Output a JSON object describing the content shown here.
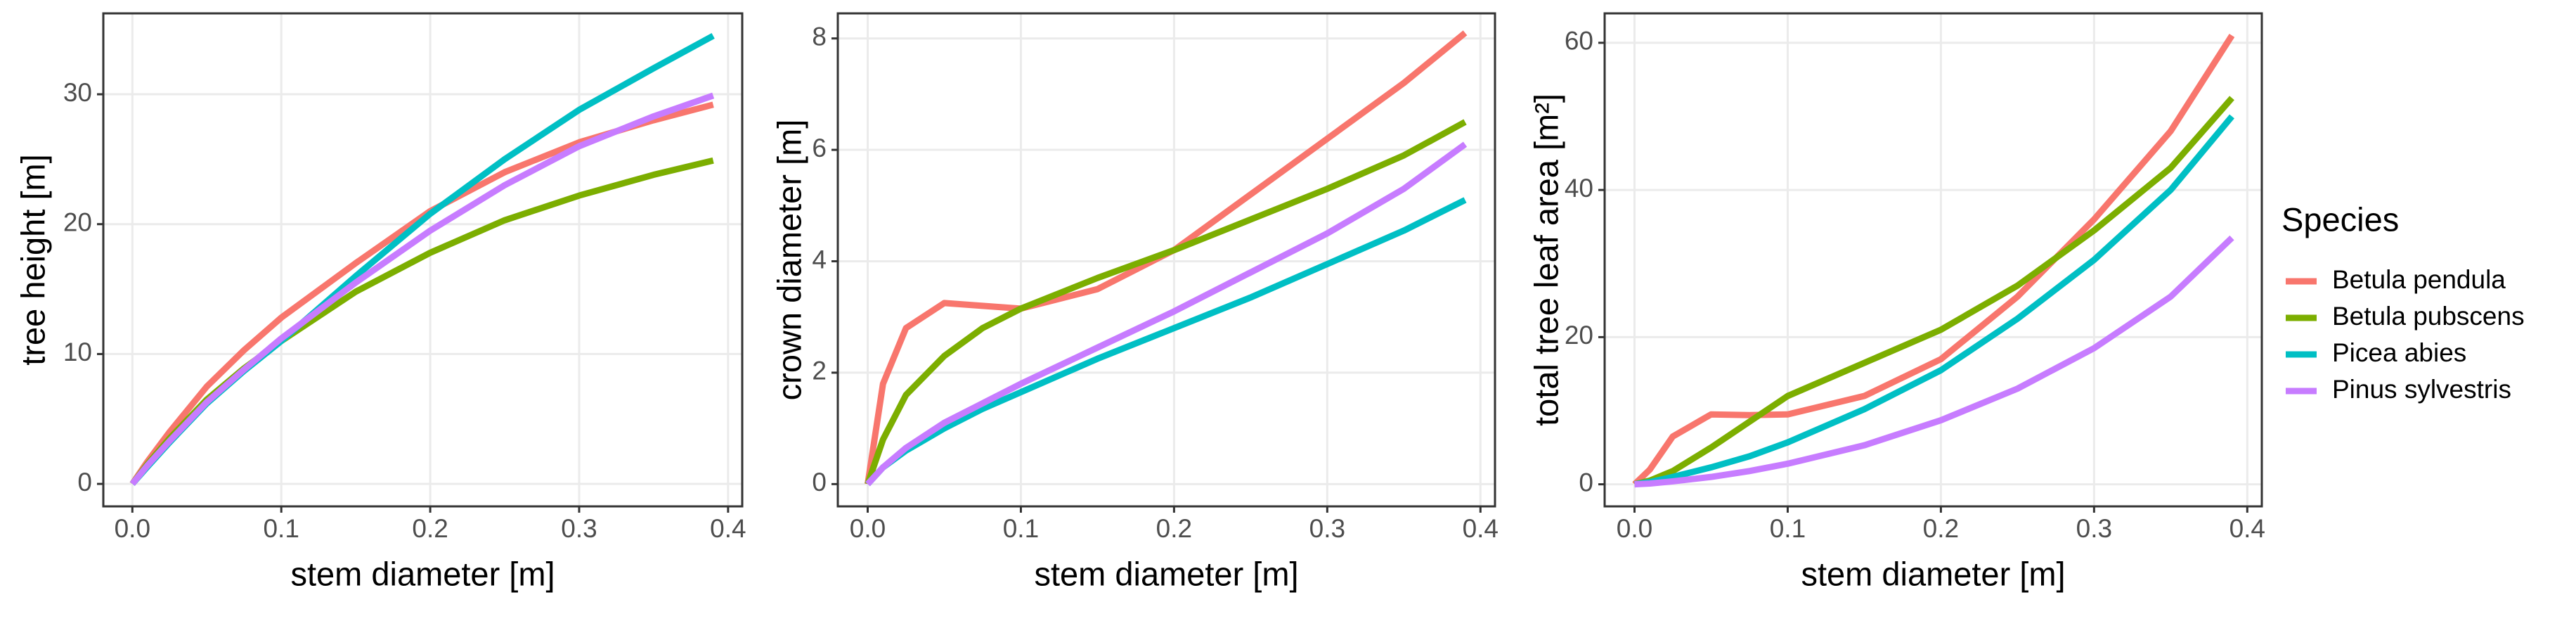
{
  "chart_data": [
    {
      "type": "line",
      "xlabel": "stem diameter [m]",
      "ylabel": "tree height [m]",
      "x": [
        0,
        0.01,
        0.025,
        0.05,
        0.075,
        0.1,
        0.15,
        0.2,
        0.25,
        0.3,
        0.35,
        0.39
      ],
      "xlim": [
        -0.0195,
        0.4095
      ],
      "xticks": [
        {
          "value": 0,
          "label": "0.0"
        },
        0.1,
        0.2,
        0.3,
        0.4
      ],
      "ylim": [
        -1.73,
        36.23
      ],
      "yticks": [
        0,
        10,
        20,
        30
      ],
      "grid": true,
      "legend_title": "Species",
      "series": [
        {
          "name": "Betula pendula",
          "color": "#F8766D",
          "values": [
            0,
            1.7,
            4,
            7.5,
            10.3,
            12.8,
            17,
            21,
            24,
            26.3,
            28,
            29.2
          ]
        },
        {
          "name": "Betula pubscens",
          "color": "#7CAE00",
          "values": [
            0,
            1.5,
            3.5,
            6.5,
            8.9,
            11,
            14.8,
            17.8,
            20.3,
            22.2,
            23.8,
            24.9
          ]
        },
        {
          "name": "Picea abies",
          "color": "#00BFC4",
          "values": [
            0,
            1.3,
            3.2,
            6.2,
            8.7,
            11,
            16,
            20.8,
            25,
            28.8,
            32,
            34.5
          ]
        },
        {
          "name": "Pinus sylvestris",
          "color": "#C77CFF",
          "values": [
            0,
            1.4,
            3.3,
            6.3,
            8.8,
            11.2,
            15.5,
            19.5,
            23,
            26,
            28.3,
            29.9
          ]
        }
      ]
    },
    {
      "type": "line",
      "xlabel": "stem diameter [m]",
      "ylabel": "crown diameter [m]",
      "x": [
        0,
        0.01,
        0.025,
        0.05,
        0.075,
        0.1,
        0.15,
        0.2,
        0.25,
        0.3,
        0.35,
        0.39
      ],
      "xlim": [
        -0.0195,
        0.4095
      ],
      "xticks": [
        {
          "value": 0,
          "label": "0.0"
        },
        0.1,
        0.2,
        0.3,
        0.4
      ],
      "ylim": [
        -0.4,
        8.45
      ],
      "yticks": [
        0,
        2,
        4,
        6,
        8
      ],
      "grid": true,
      "series": [
        {
          "name": "Betula pendula",
          "color": "#F8766D",
          "values": [
            0,
            1.8,
            2.8,
            3.25,
            3.2,
            3.15,
            3.5,
            4.2,
            5.2,
            6.2,
            7.2,
            8.1
          ]
        },
        {
          "name": "Betula pubscens",
          "color": "#7CAE00",
          "values": [
            0,
            0.8,
            1.6,
            2.3,
            2.8,
            3.15,
            3.7,
            4.2,
            4.75,
            5.3,
            5.9,
            6.5
          ]
        },
        {
          "name": "Picea abies",
          "color": "#00BFC4",
          "values": [
            0,
            0.3,
            0.6,
            1.0,
            1.35,
            1.65,
            2.25,
            2.8,
            3.35,
            3.95,
            4.55,
            5.1
          ]
        },
        {
          "name": "Pinus sylvestris",
          "color": "#C77CFF",
          "values": [
            0,
            0.3,
            0.65,
            1.1,
            1.45,
            1.8,
            2.45,
            3.1,
            3.8,
            4.5,
            5.3,
            6.1
          ]
        }
      ]
    },
    {
      "type": "line",
      "xlabel": "stem diameter [m]",
      "ylabel": "total tree leaf area [m²]",
      "x": [
        0,
        0.01,
        0.025,
        0.05,
        0.075,
        0.1,
        0.15,
        0.2,
        0.25,
        0.3,
        0.35,
        0.39
      ],
      "xlim": [
        -0.0195,
        0.4095
      ],
      "xticks": [
        {
          "value": 0,
          "label": "0.0"
        },
        0.1,
        0.2,
        0.3,
        0.4
      ],
      "ylim": [
        -3,
        64
      ],
      "yticks": [
        0,
        20,
        40,
        60
      ],
      "grid": true,
      "series": [
        {
          "name": "Betula pendula",
          "color": "#F8766D",
          "values": [
            0,
            2,
            6.5,
            9.5,
            9.4,
            9.5,
            12,
            17,
            25.5,
            36,
            48,
            61
          ]
        },
        {
          "name": "Betula pubscens",
          "color": "#7CAE00",
          "values": [
            0,
            0.5,
            1.8,
            5,
            8.5,
            12,
            16.5,
            21,
            27,
            34.5,
            43,
            52.5
          ]
        },
        {
          "name": "Picea abies",
          "color": "#00BFC4",
          "values": [
            0,
            0.3,
            1,
            2.3,
            3.8,
            5.7,
            10.2,
            15.5,
            22.5,
            30.5,
            40,
            50
          ]
        },
        {
          "name": "Pinus sylvestris",
          "color": "#C77CFF",
          "values": [
            0,
            0.1,
            0.4,
            1,
            1.8,
            2.8,
            5.3,
            8.7,
            13,
            18.5,
            25.5,
            33.5
          ]
        }
      ]
    }
  ]
}
